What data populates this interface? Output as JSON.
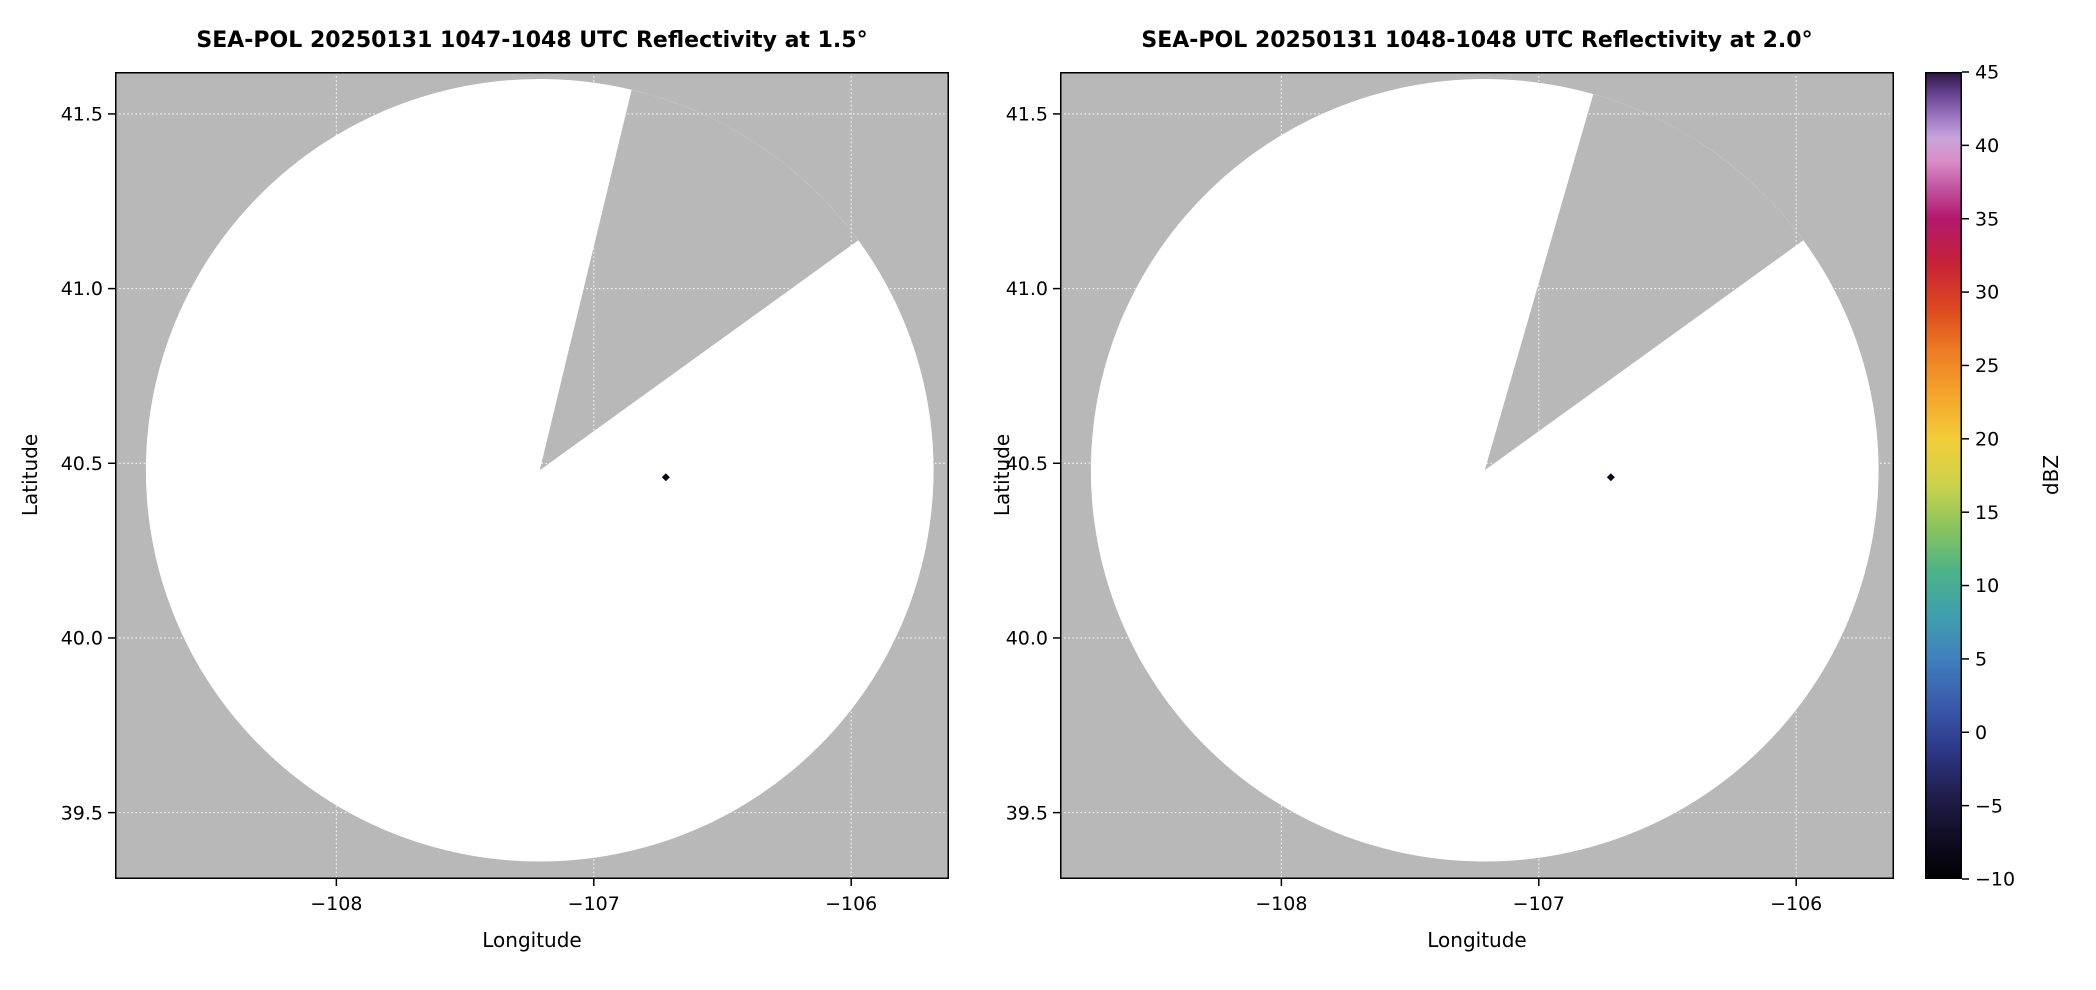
{
  "figure": {
    "background": "#ffffff"
  },
  "chart_data": {
    "type": "radar_ppi_pair",
    "colors": {
      "no_data_gray": "#b8b8b8",
      "scan_white": "#ffffff",
      "grid": "#ffffff",
      "axis": "#000000",
      "echo_dot": "#10091e"
    },
    "panels": [
      {
        "title": "SEA-POL 20250131 1047-1048 UTC Reflectivity at 1.5°",
        "xlabel": "Longitude",
        "ylabel": "Latitude",
        "xlim": [
          -108.86,
          -105.62
        ],
        "ylim": [
          39.31,
          41.62
        ],
        "xticks": {
          "values": [
            -108,
            -107,
            -106
          ],
          "labels": [
            "−108",
            "−107",
            "−106"
          ]
        },
        "yticks": {
          "values": [
            39.5,
            40.0,
            40.5,
            41.0,
            41.5
          ],
          "labels": [
            "39.5",
            "40.0",
            "40.5",
            "41.0",
            "41.5"
          ]
        },
        "radar": {
          "center": {
            "lon": -107.21,
            "lat": 40.48
          },
          "radius_deg": {
            "lon": 1.53,
            "lat": 1.12
          },
          "blocked_sector_azimuth_deg": {
            "start": 13.5,
            "end": 54
          }
        },
        "echoes": [
          {
            "lon": -106.72,
            "lat": 40.46
          }
        ]
      },
      {
        "title": "SEA-POL 20250131 1048-1048 UTC Reflectivity at 2.0°",
        "xlabel": "Longitude",
        "ylabel": "Latitude",
        "xlim": [
          -108.86,
          -105.62
        ],
        "ylim": [
          39.31,
          41.62
        ],
        "xticks": {
          "values": [
            -108,
            -107,
            -106
          ],
          "labels": [
            "−108",
            "−107",
            "−106"
          ]
        },
        "yticks": {
          "values": [
            39.5,
            40.0,
            40.5,
            41.0,
            41.5
          ],
          "labels": [
            "39.5",
            "40.0",
            "40.5",
            "41.0",
            "41.5"
          ]
        },
        "radar": {
          "center": {
            "lon": -107.21,
            "lat": 40.48
          },
          "radius_deg": {
            "lon": 1.53,
            "lat": 1.12
          },
          "blocked_sector_azimuth_deg": {
            "start": 16,
            "end": 54
          }
        },
        "echoes": [
          {
            "lon": -106.72,
            "lat": 40.46
          }
        ]
      }
    ],
    "colorbar": {
      "label": "dBZ",
      "range": [
        -10,
        45
      ],
      "ticks": {
        "values": [
          45,
          40,
          35,
          30,
          25,
          20,
          15,
          10,
          5,
          0,
          -5,
          -10
        ],
        "labels": [
          "45",
          "40",
          "35",
          "30",
          "25",
          "20",
          "15",
          "10",
          "5",
          "0",
          "−5",
          "−10"
        ]
      },
      "colormap_name": "ChaseSpectral-like",
      "stops": [
        {
          "value": -10,
          "color": "#000000"
        },
        {
          "value": -7,
          "color": "#120e26"
        },
        {
          "value": -4,
          "color": "#232052"
        },
        {
          "value": -1,
          "color": "#2e3a8c"
        },
        {
          "value": 2,
          "color": "#3a5cad"
        },
        {
          "value": 5,
          "color": "#4180bd"
        },
        {
          "value": 8,
          "color": "#3fa0ad"
        },
        {
          "value": 11,
          "color": "#4cb388"
        },
        {
          "value": 14,
          "color": "#8ac45c"
        },
        {
          "value": 17,
          "color": "#cfd34c"
        },
        {
          "value": 20,
          "color": "#f2cd38"
        },
        {
          "value": 23,
          "color": "#f4a42c"
        },
        {
          "value": 26,
          "color": "#ec7b23"
        },
        {
          "value": 29,
          "color": "#dd4720"
        },
        {
          "value": 32,
          "color": "#c62239"
        },
        {
          "value": 35,
          "color": "#b3186b"
        },
        {
          "value": 37,
          "color": "#c2519e"
        },
        {
          "value": 39,
          "color": "#d98fc7"
        },
        {
          "value": 40.5,
          "color": "#c7a4da"
        },
        {
          "value": 42,
          "color": "#9a74c0"
        },
        {
          "value": 43.5,
          "color": "#674392"
        },
        {
          "value": 45,
          "color": "#2b1542"
        }
      ]
    }
  }
}
